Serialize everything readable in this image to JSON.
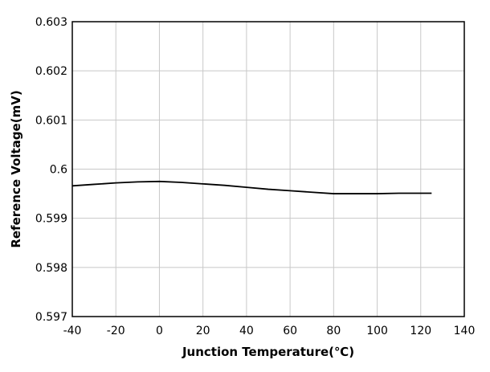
{
  "chart_data": {
    "type": "line",
    "title": "",
    "xlabel": "Junction Temperature(℃)",
    "ylabel": "Reference Voltage(mV)",
    "xlim": [
      -40,
      140
    ],
    "ylim": [
      0.597,
      0.603
    ],
    "x_ticks": [
      -40,
      -20,
      0,
      20,
      40,
      60,
      80,
      100,
      120,
      140
    ],
    "x_tick_labels": [
      "-40",
      "-20",
      "0",
      "20",
      "40",
      "60",
      "80",
      "100",
      "120",
      "140"
    ],
    "y_ticks": [
      0.597,
      0.598,
      0.599,
      0.6,
      0.601,
      0.602,
      0.603
    ],
    "y_tick_labels": [
      "0.597",
      "0.598",
      "0.599",
      "0.6",
      "0.601",
      "0.602",
      "0.603"
    ],
    "grid": true,
    "line_color": "#000000",
    "grid_color": "#c8c8c8",
    "series": [
      {
        "x": [
          -40,
          -30,
          -20,
          -10,
          0,
          10,
          20,
          30,
          40,
          50,
          60,
          70,
          80,
          90,
          100,
          110,
          125
        ],
        "values": [
          0.59966,
          0.59969,
          0.59972,
          0.59974,
          0.59975,
          0.59973,
          0.5997,
          0.59967,
          0.59963,
          0.59959,
          0.59956,
          0.59953,
          0.5995,
          0.5995,
          0.5995,
          0.59951,
          0.59951
        ]
      }
    ]
  }
}
